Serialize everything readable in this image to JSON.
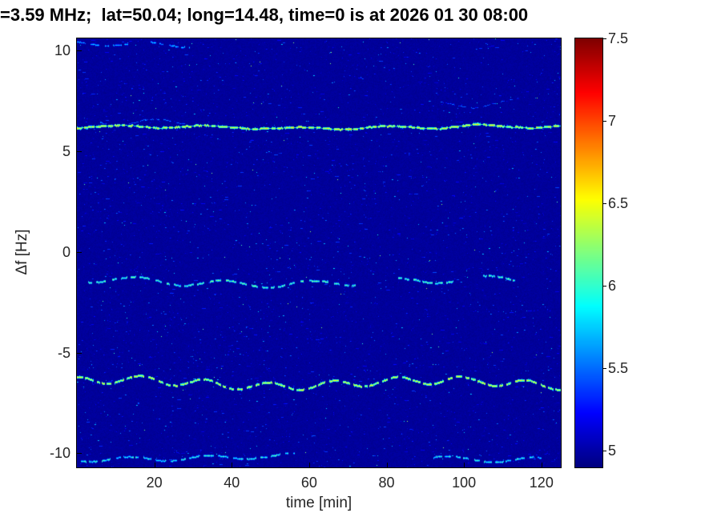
{
  "chart_data": {
    "type": "heatmap",
    "subtype": "doppler-shift-spectrogram",
    "title": "=3.59 MHz;  lat=50.04; long=14.48, time=0 is at 2026 01 30 08:00",
    "xlabel": "time [min]",
    "ylabel": "Δf [Hz]",
    "xlim": [
      0,
      125
    ],
    "ylim": [
      -10.7,
      10.6
    ],
    "xticks": [
      20,
      40,
      60,
      80,
      100,
      120
    ],
    "yticks": [
      -10,
      -5,
      0,
      5,
      10
    ],
    "grid": false,
    "colormap": "jet",
    "background_value": 4.95,
    "colorbar": {
      "min": 4.9,
      "max": 7.5,
      "ticks": [
        5,
        5.5,
        6,
        6.5,
        7,
        7.5
      ]
    },
    "traces": [
      {
        "name": "strong-line",
        "center_hz": 6.2,
        "value": 6.5,
        "base_value": 5.85,
        "wobble_hz": 0.06,
        "gap": 0.15,
        "segments": [
          [
            0,
            125
          ]
        ]
      },
      {
        "name": "strong-line-ghost",
        "center_hz": 6.55,
        "value": 5.45,
        "wobble_hz": 0.12,
        "gap": 0.4,
        "segments": [
          [
            6,
            29
          ]
        ]
      },
      {
        "name": "mid-trace",
        "center_hz": -1.45,
        "value": 6.1,
        "wobble_hz": 0.16,
        "gap": 0.45,
        "segments": [
          [
            3,
            72
          ],
          [
            83,
            97
          ],
          [
            105,
            113
          ]
        ]
      },
      {
        "name": "low-trace",
        "center_hz": -6.5,
        "value": 6.45,
        "wobble_hz": 0.2,
        "gap": 0.25,
        "segments": [
          [
            0,
            125
          ]
        ]
      },
      {
        "name": "top-edge-trace",
        "center_hz": 10.3,
        "value": 5.7,
        "wobble_hz": 0.1,
        "gap": 0.4,
        "segments": [
          [
            0,
            13
          ],
          [
            19,
            29
          ]
        ]
      },
      {
        "name": "faint-trace",
        "center_hz": 7.3,
        "value": 5.4,
        "wobble_hz": 0.2,
        "gap": 0.45,
        "segments": [
          [
            94,
            114
          ]
        ]
      },
      {
        "name": "bottom-edge-trace",
        "center_hz": -10.2,
        "value": 5.95,
        "wobble_hz": 0.12,
        "gap": 0.45,
        "segments": [
          [
            1,
            56
          ],
          [
            92,
            120
          ]
        ]
      }
    ]
  }
}
